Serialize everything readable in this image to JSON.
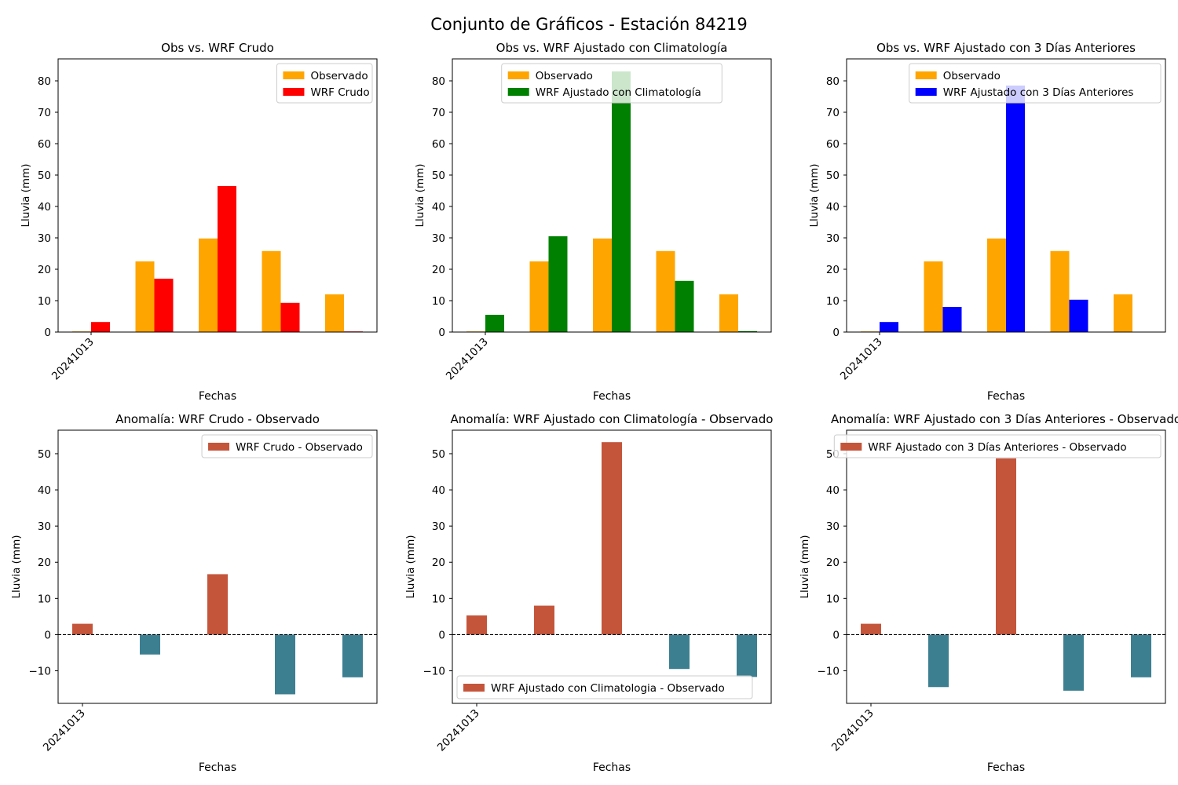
{
  "figure": {
    "title": "Conjunto de Gráficos - Estación 84219"
  },
  "colors": {
    "observado": "#ffa500",
    "wrf_crudo": "#ff0000",
    "wrf_clim": "#008000",
    "wrf_3dias": "#0000ff",
    "anomaly_positive": "#c4553b",
    "anomaly_negative": "#3c7f91"
  },
  "chart_data": [
    {
      "type": "bar",
      "title": "Obs vs. WRF Crudo",
      "xlabel": "Fechas",
      "ylabel": "Lluvia (mm)",
      "ylim": [
        0,
        87
      ],
      "yticks": [
        0,
        10,
        20,
        30,
        40,
        50,
        60,
        70,
        80
      ],
      "xticklabels": [
        "20241013"
      ],
      "categories": [
        "20241013",
        "",
        "",
        "",
        ""
      ],
      "legend_position": "upper-right",
      "series": [
        {
          "name": "Observado",
          "color_key": "observado",
          "values": [
            0.2,
            22.5,
            29.8,
            25.8,
            12.0
          ]
        },
        {
          "name": "WRF Crudo",
          "color_key": "wrf_crudo",
          "values": [
            3.2,
            17.0,
            46.5,
            9.3,
            0.2
          ]
        }
      ]
    },
    {
      "type": "bar",
      "title": "Obs vs. WRF Ajustado con Climatología",
      "xlabel": "Fechas",
      "ylabel": "Lluvia (mm)",
      "ylim": [
        0,
        87
      ],
      "yticks": [
        0,
        10,
        20,
        30,
        40,
        50,
        60,
        70,
        80
      ],
      "xticklabels": [
        "20241013"
      ],
      "categories": [
        "20241013",
        "",
        "",
        "",
        ""
      ],
      "legend_position": "upper-center",
      "series": [
        {
          "name": "Observado",
          "color_key": "observado",
          "values": [
            0.2,
            22.5,
            29.8,
            25.8,
            12.0
          ]
        },
        {
          "name": "WRF Ajustado con Climatología",
          "color_key": "wrf_clim",
          "values": [
            5.5,
            30.5,
            83.0,
            16.3,
            0.3
          ]
        }
      ]
    },
    {
      "type": "bar",
      "title": "Obs vs. WRF Ajustado con 3 Días Anteriores",
      "xlabel": "Fechas",
      "ylabel": "Lluvia (mm)",
      "ylim": [
        0,
        87
      ],
      "yticks": [
        0,
        10,
        20,
        30,
        40,
        50,
        60,
        70,
        80
      ],
      "xticklabels": [
        "20241013"
      ],
      "categories": [
        "20241013",
        "",
        "",
        "",
        ""
      ],
      "legend_position": "upper-right",
      "series": [
        {
          "name": "Observado",
          "color_key": "observado",
          "values": [
            0.2,
            22.5,
            29.8,
            25.8,
            12.0
          ]
        },
        {
          "name": "WRF Ajustado con 3 Días Anteriores",
          "color_key": "wrf_3dias",
          "values": [
            3.2,
            8.0,
            78.5,
            10.3,
            0.0
          ]
        }
      ]
    },
    {
      "type": "bar",
      "title": "Anomalía: WRF Crudo - Observado",
      "xlabel": "Fechas",
      "ylabel": "Lluvia (mm)",
      "ylim": [
        -19,
        56.5
      ],
      "yticks": [
        -10,
        0,
        10,
        20,
        30,
        40,
        50
      ],
      "xticklabels": [
        "20241013"
      ],
      "categories": [
        "20241013",
        "",
        "",
        "",
        ""
      ],
      "zero_line": "dashed",
      "legend_position": "upper-right",
      "series": [
        {
          "name": "WRF Crudo - Observado",
          "values": [
            3.0,
            -5.5,
            16.7,
            -16.5,
            -11.8
          ]
        }
      ]
    },
    {
      "type": "bar",
      "title": "Anomalía: WRF Ajustado con Climatología - Observado",
      "xlabel": "Fechas",
      "ylabel": "Lluvia (mm)",
      "ylim": [
        -19,
        56.5
      ],
      "yticks": [
        -10,
        0,
        10,
        20,
        30,
        40,
        50
      ],
      "xticklabels": [
        "20241013"
      ],
      "categories": [
        "20241013",
        "",
        "",
        "",
        ""
      ],
      "zero_line": "dashed",
      "legend_position": "lower-left",
      "series": [
        {
          "name": "WRF Ajustado con Climatologia - Observado",
          "values": [
            5.3,
            8.0,
            53.2,
            -9.5,
            -11.7
          ]
        }
      ]
    },
    {
      "type": "bar",
      "title": "Anomalía: WRF Ajustado con 3 Días Anteriores - Observado",
      "xlabel": "Fechas",
      "ylabel": "Lluvia (mm)",
      "ylim": [
        -19,
        56.5
      ],
      "yticks": [
        -10,
        0,
        10,
        20,
        30,
        40,
        50
      ],
      "xticklabels": [
        "20241013"
      ],
      "categories": [
        "20241013",
        "",
        "",
        "",
        ""
      ],
      "zero_line": "dashed",
      "legend_position": "upper-right",
      "series": [
        {
          "name": "WRF Ajustado con 3 Días Anteriores - Observado",
          "values": [
            3.0,
            -14.5,
            48.7,
            -15.5,
            -11.8
          ]
        }
      ]
    }
  ]
}
